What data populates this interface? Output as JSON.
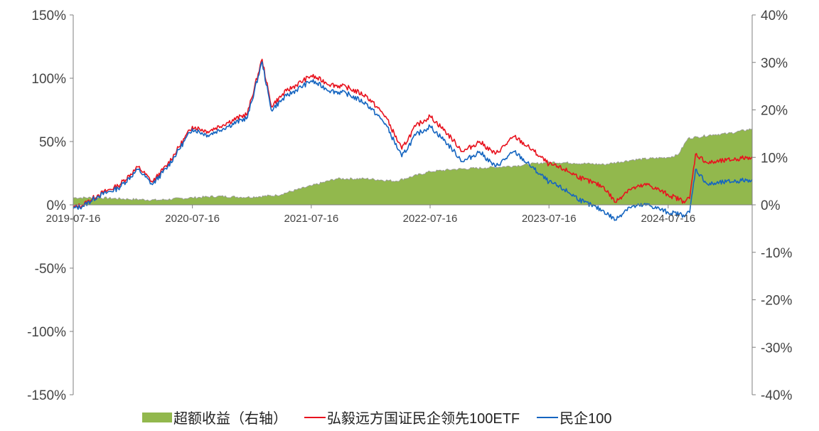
{
  "chart_data": {
    "type": "line",
    "title": "",
    "x_tick_labels": [
      "2019-07-16",
      "2020-07-16",
      "2021-07-16",
      "2022-07-16",
      "2023-07-16",
      "2024-07-16"
    ],
    "x_range": [
      "2019-07-16",
      "2025-03-31"
    ],
    "y_left": {
      "ticks": [
        "150%",
        "100%",
        "50%",
        "0%",
        "-50%",
        "-100%",
        "-150%"
      ],
      "range": [
        -150,
        150
      ]
    },
    "y_right": {
      "ticks": [
        "40%",
        "30%",
        "20%",
        "10%",
        "0%",
        "-10%",
        "-20%",
        "-30%",
        "-40%"
      ],
      "range": [
        -40,
        40
      ]
    },
    "grid": false,
    "legend_placement": "bottom",
    "series": [
      {
        "name": "超额收益（右轴）",
        "type": "area",
        "axis": "right",
        "color": "#92B84D",
        "x": [
          "2019-07-16",
          "2019-10-01",
          "2020-01-01",
          "2020-04-01",
          "2020-07-16",
          "2020-10-01",
          "2021-01-01",
          "2021-04-01",
          "2021-07-16",
          "2021-10-01",
          "2022-01-01",
          "2022-04-01",
          "2022-07-16",
          "2022-10-01",
          "2023-01-01",
          "2023-04-01",
          "2023-07-16",
          "2023-10-01",
          "2024-01-01",
          "2024-04-01",
          "2024-07-16",
          "2024-08-15",
          "2024-09-15",
          "2024-10-15",
          "2024-12-01",
          "2025-01-15",
          "2025-03-31"
        ],
        "values": [
          1.5,
          1.5,
          1.2,
          1.0,
          1.5,
          1.8,
          1.6,
          2.0,
          4.0,
          5.5,
          5.5,
          5.0,
          7.0,
          7.5,
          7.8,
          8.2,
          9.0,
          8.8,
          8.5,
          9.5,
          10.0,
          10.5,
          14.0,
          14.3,
          14.8,
          15.0,
          16.0
        ]
      },
      {
        "name": "弘毅远方国证民企领先100ETF",
        "type": "line",
        "axis": "left",
        "color": "#E8121E",
        "x": [
          "2019-07-16",
          "2019-08-15",
          "2019-10-01",
          "2019-12-01",
          "2020-02-01",
          "2020-03-15",
          "2020-05-01",
          "2020-07-16",
          "2020-09-01",
          "2020-11-01",
          "2021-01-01",
          "2021-02-15",
          "2021-03-15",
          "2021-05-01",
          "2021-07-16",
          "2021-09-15",
          "2021-11-01",
          "2022-01-01",
          "2022-03-01",
          "2022-04-20",
          "2022-06-01",
          "2022-07-16",
          "2022-09-01",
          "2022-10-25",
          "2022-12-15",
          "2023-02-01",
          "2023-04-01",
          "2023-06-01",
          "2023-07-16",
          "2023-09-01",
          "2023-11-01",
          "2024-01-01",
          "2024-02-05",
          "2024-03-15",
          "2024-05-15",
          "2024-07-16",
          "2024-09-01",
          "2024-09-20",
          "2024-10-08",
          "2024-11-15",
          "2025-01-10",
          "2025-03-31"
        ],
        "values": [
          -2,
          0,
          8,
          15,
          30,
          18,
          32,
          62,
          58,
          65,
          72,
          115,
          78,
          90,
          102,
          95,
          93,
          86,
          70,
          44,
          62,
          70,
          58,
          42,
          50,
          40,
          54,
          42,
          32,
          28,
          20,
          14,
          2,
          12,
          16,
          8,
          3,
          5,
          40,
          33,
          35,
          38
        ]
      },
      {
        "name": "民企100",
        "type": "line",
        "axis": "left",
        "color": "#1565C0",
        "x": [
          "2019-07-16",
          "2019-08-15",
          "2019-10-01",
          "2019-12-01",
          "2020-02-01",
          "2020-03-15",
          "2020-05-01",
          "2020-07-16",
          "2020-09-01",
          "2020-11-01",
          "2021-01-01",
          "2021-02-15",
          "2021-03-15",
          "2021-05-01",
          "2021-07-16",
          "2021-09-15",
          "2021-11-01",
          "2022-01-01",
          "2022-03-01",
          "2022-04-20",
          "2022-06-01",
          "2022-07-16",
          "2022-09-01",
          "2022-10-25",
          "2022-12-15",
          "2023-02-01",
          "2023-04-01",
          "2023-06-01",
          "2023-07-16",
          "2023-09-01",
          "2023-11-01",
          "2024-01-01",
          "2024-02-05",
          "2024-03-15",
          "2024-05-15",
          "2024-07-16",
          "2024-09-01",
          "2024-09-20",
          "2024-10-08",
          "2024-11-15",
          "2025-01-10",
          "2025-03-31"
        ],
        "values": [
          -3,
          -1,
          7,
          13,
          28,
          16,
          30,
          60,
          55,
          62,
          69,
          113,
          75,
          86,
          98,
          90,
          88,
          80,
          64,
          38,
          55,
          62,
          50,
          34,
          42,
          30,
          42,
          28,
          18,
          12,
          2,
          -5,
          -12,
          -2,
          0,
          -6,
          -8,
          -6,
          28,
          16,
          18,
          20
        ]
      }
    ]
  },
  "legend": {
    "excess": "超额收益（右轴）",
    "etf": "弘毅远方国证民企领先100ETF",
    "index": "民企100"
  }
}
